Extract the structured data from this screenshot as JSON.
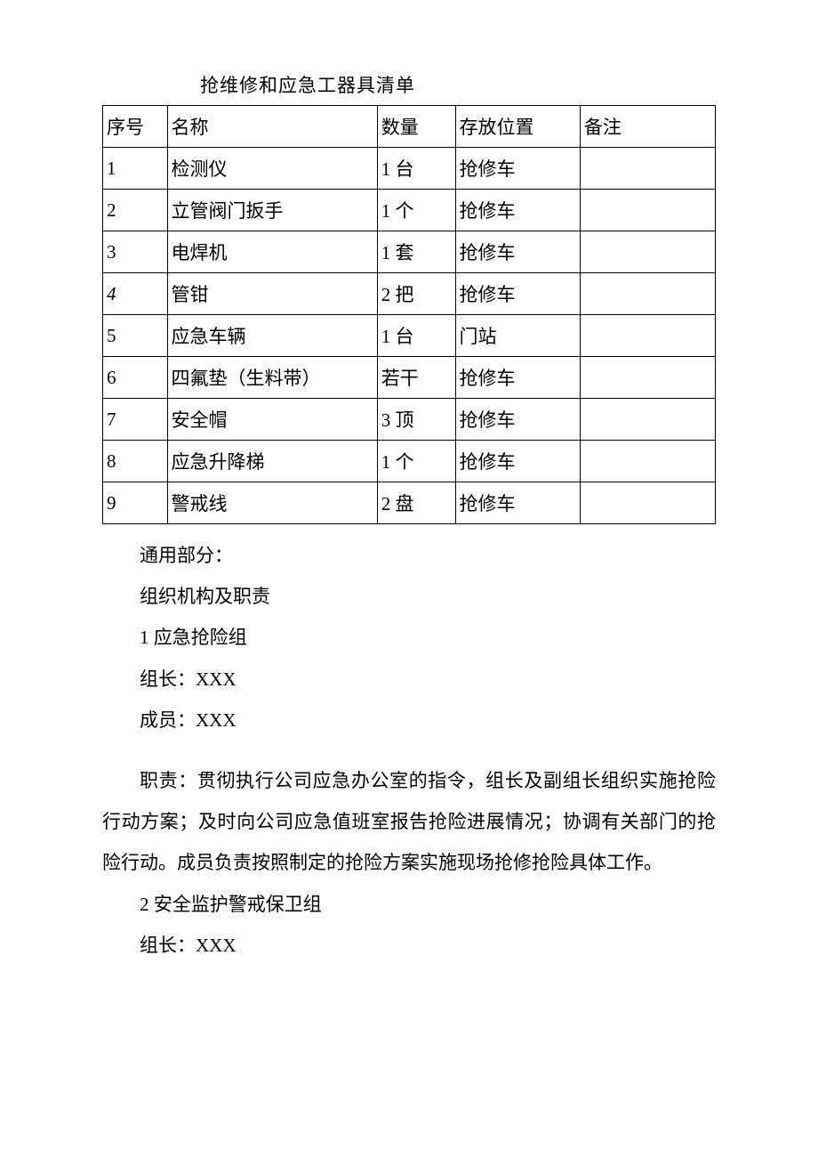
{
  "title": "抢维修和应急工器具清单",
  "table": {
    "headers": {
      "seq": "序号",
      "name": "名称",
      "qty": "数量",
      "loc": "存放位置",
      "note": "备注"
    },
    "rows": [
      {
        "seq": "1",
        "name": "检测仪",
        "qty": "1 台",
        "loc": "抢修车",
        "note": ""
      },
      {
        "seq": "2",
        "name": "立管阀门扳手",
        "qty": "1 个",
        "loc": "抢修车",
        "note": ""
      },
      {
        "seq": "3",
        "name": "电焊机",
        "qty": "1 套",
        "loc": "抢修车",
        "note": ""
      },
      {
        "seq": "4",
        "name": "管钳",
        "qty": "2 把",
        "loc": "抢修车",
        "note": "",
        "seq_italic": true
      },
      {
        "seq": "5",
        "name": "应急车辆",
        "qty": "1 台",
        "loc": "门站",
        "note": ""
      },
      {
        "seq": "6",
        "name": "四氟垫（生料带）",
        "qty": "若干",
        "loc": "抢修车",
        "note": ""
      },
      {
        "seq": "7",
        "name": "安全帽",
        "qty": "3 顶",
        "loc": "抢修车",
        "note": ""
      },
      {
        "seq": "8",
        "name": "应急升降梯",
        "qty": "1 个",
        "loc": "抢修车",
        "note": ""
      },
      {
        "seq": "9",
        "name": "警戒线",
        "qty": "2 盘",
        "loc": "抢修车",
        "note": ""
      }
    ]
  },
  "body": {
    "p1": "通用部分：",
    "p2": "组织机构及职责",
    "p3": "1 应急抢险组",
    "p4": "组长：XXX",
    "p5": "成员：XXX",
    "p6": "职责：贯彻执行公司应急办公室的指令，组长及副组长组织实施抢险行动方案；及时向公司应急值班室报告抢险进展情况；协调有关部门的抢险行动。成员负责按照制定的抢险方案实施现场抢修抢险具体工作。",
    "p7": "2 安全监护警戒保卫组",
    "p8": "组长：XXX"
  }
}
